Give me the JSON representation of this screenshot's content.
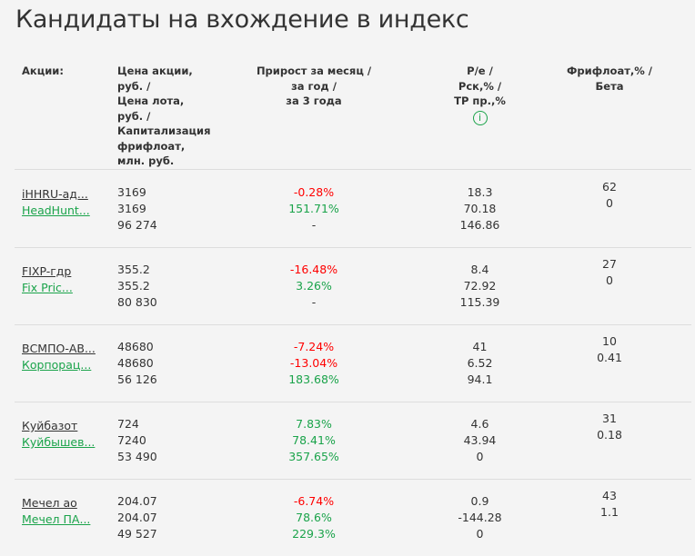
{
  "title": "Кандидаты на вхождение в индекс",
  "columns": {
    "stock": "Акции:",
    "price": "Цена акции,\nруб. /\nЦена лота,\nруб. /\nКапитализация\nфрифлоат,\nмлн. руб.",
    "growth": "Прирост за месяц /\nза год /\nза 3 года",
    "pe": "P/e /\nРск,% /\nTP пр.,%",
    "ff": "Фрифлоат,% /\nБета",
    "info_icon": "i"
  },
  "rows": [
    {
      "ticker": "iHHRU-ад...",
      "company": "HeadHunt...",
      "price": "3169",
      "lot": "3169",
      "cap": "96 274",
      "g1": "-0.28%",
      "g1c": "red",
      "g2": "151.71%",
      "g2c": "green",
      "g3": "-",
      "g3c": "",
      "pe": "18.3",
      "rsk": "70.18",
      "tp": "146.86",
      "ff": "62",
      "beta": "0"
    },
    {
      "ticker": "FIXP-гдр",
      "company": "Fix Pric...",
      "price": "355.2",
      "lot": "355.2",
      "cap": "80 830",
      "g1": "-16.48%",
      "g1c": "red",
      "g2": "3.26%",
      "g2c": "green",
      "g3": "-",
      "g3c": "",
      "pe": "8.4",
      "rsk": "72.92",
      "tp": "115.39",
      "ff": "27",
      "beta": "0"
    },
    {
      "ticker": "ВСМПО-АВ...",
      "company": "Корпорац...",
      "price": "48680",
      "lot": "48680",
      "cap": "56 126",
      "g1": "-7.24%",
      "g1c": "red",
      "g2": "-13.04%",
      "g2c": "red",
      "g3": "183.68%",
      "g3c": "green",
      "pe": "41",
      "rsk": "6.52",
      "tp": "94.1",
      "ff": "10",
      "beta": "0.41"
    },
    {
      "ticker": "Куйбазот",
      "company": "Куйбышев...",
      "price": "724",
      "lot": "7240",
      "cap": "53 490",
      "g1": "7.83%",
      "g1c": "green",
      "g2": "78.41%",
      "g2c": "green",
      "g3": "357.65%",
      "g3c": "green",
      "pe": "4.6",
      "rsk": "43.94",
      "tp": "0",
      "ff": "31",
      "beta": "0.18"
    },
    {
      "ticker": "Мечел ао",
      "company": "Мечел ПА...",
      "price": "204.07",
      "lot": "204.07",
      "cap": "49 527",
      "g1": "-6.74%",
      "g1c": "red",
      "g2": "78.6%",
      "g2c": "green",
      "g3": "229.3%",
      "g3c": "green",
      "pe": "0.9",
      "rsk": "-144.28",
      "tp": "0",
      "ff": "43",
      "beta": "1.1"
    }
  ]
}
